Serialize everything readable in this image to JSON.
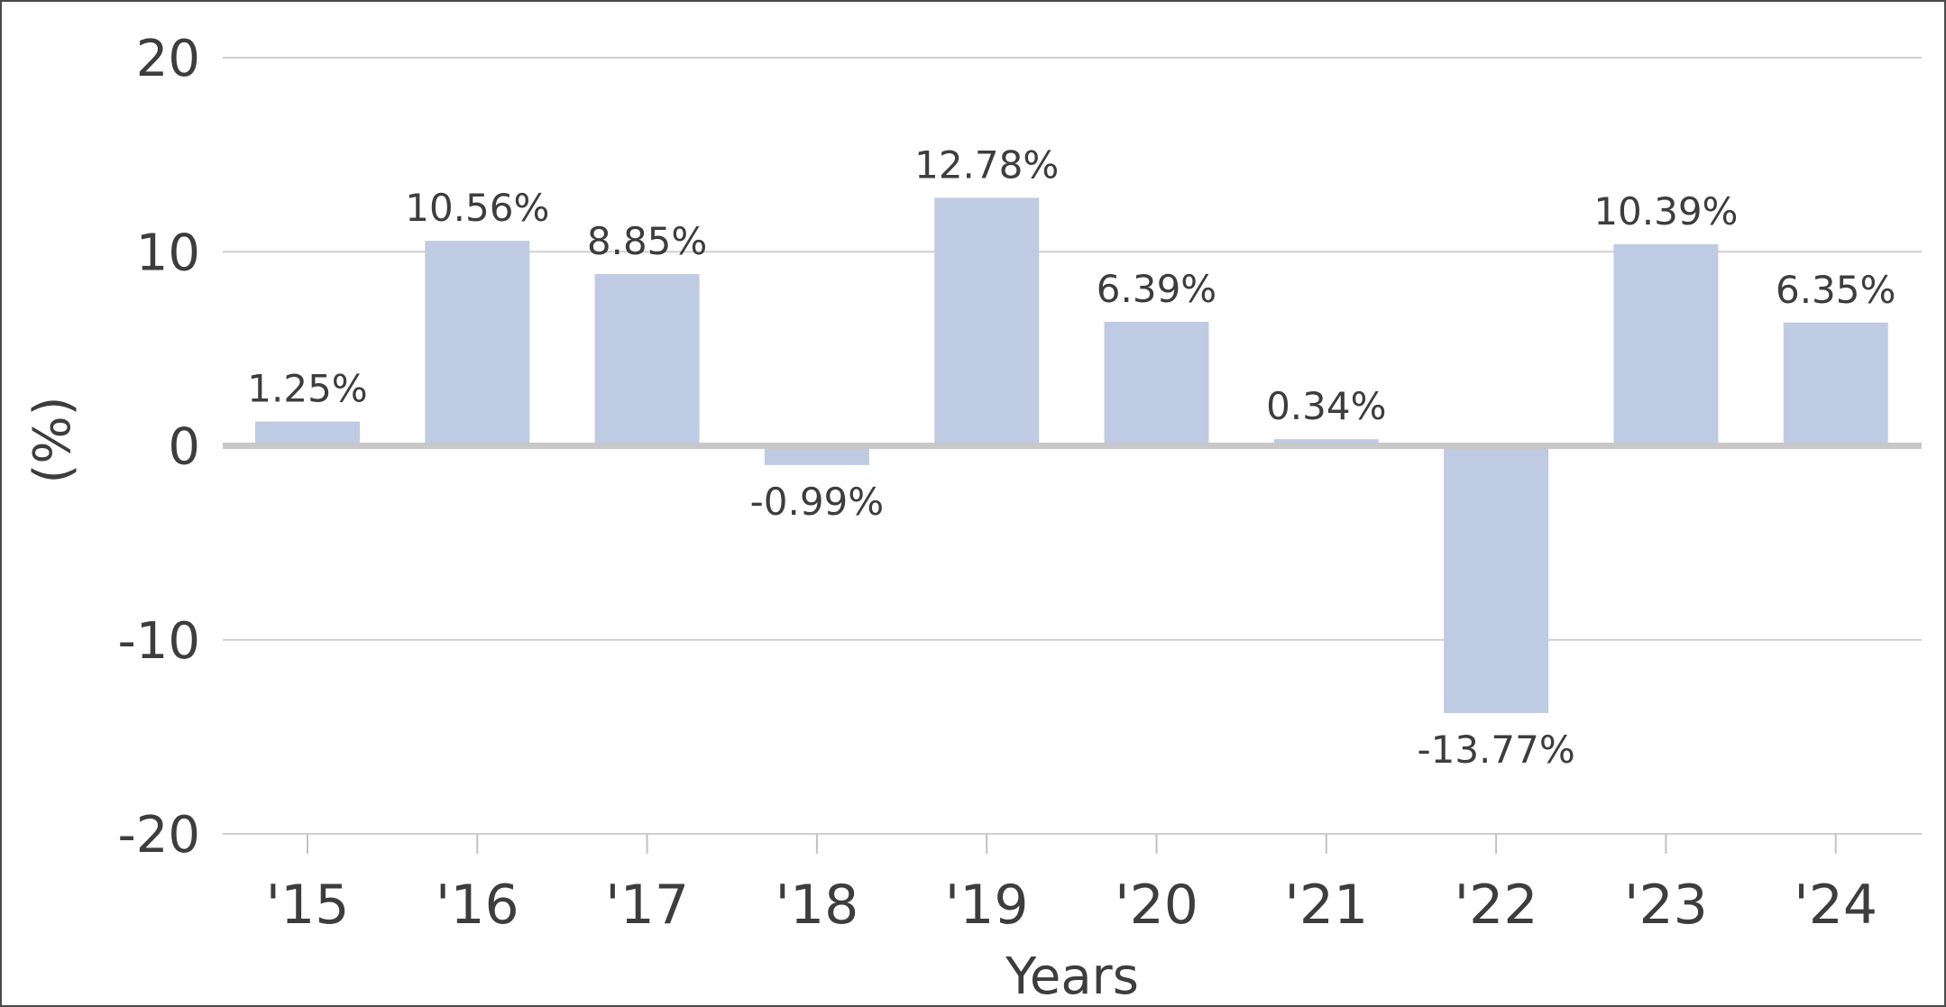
{
  "chart_data": {
    "type": "bar",
    "categories": [
      "'15",
      "'16",
      "'17",
      "'18",
      "'19",
      "'20",
      "'21",
      "'22",
      "'23",
      "'24"
    ],
    "values": [
      1.25,
      10.56,
      8.85,
      -0.99,
      12.78,
      6.39,
      0.34,
      -13.77,
      10.39,
      6.35
    ],
    "data_labels": [
      "1.25%",
      "10.56%",
      "8.85%",
      "-0.99%",
      "12.78%",
      "6.39%",
      "0.34%",
      "-13.77%",
      "10.39%",
      "6.35%"
    ],
    "title": "",
    "xlabel": "Years",
    "ylabel": "(%)",
    "ylim": [
      -20,
      20
    ],
    "yticks": [
      20,
      10,
      0,
      -10,
      -20
    ],
    "ytick_labels": [
      "20",
      "10",
      "0",
      "-10",
      "-20"
    ],
    "grid": true,
    "bar_color": "#bfcbe2"
  }
}
